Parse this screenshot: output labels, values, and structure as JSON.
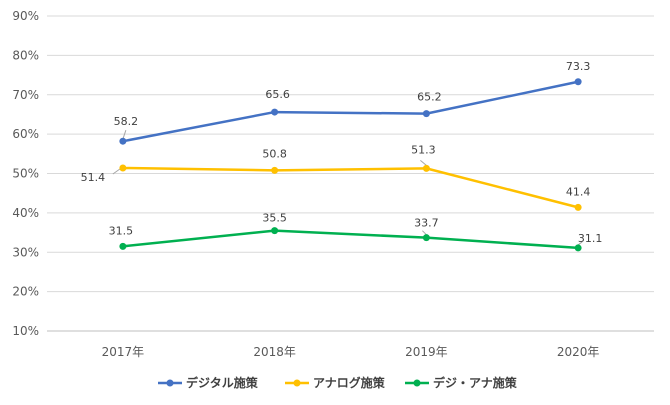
{
  "chart_data": {
    "type": "line",
    "title": "",
    "xlabel": "",
    "ylabel": "",
    "categories": [
      "2017年",
      "2018年",
      "2019年",
      "2020年"
    ],
    "y_ticks": [
      "10%",
      "20%",
      "30%",
      "40%",
      "50%",
      "60%",
      "70%",
      "80%",
      "90%"
    ],
    "ylim": [
      10,
      90
    ],
    "grid": true,
    "legend_position": "bottom",
    "series": [
      {
        "name": "デジタル施策",
        "color": "#4472C4",
        "values": [
          58.2,
          65.6,
          65.2,
          73.3
        ],
        "labels": [
          "58.2",
          "65.6",
          "65.2",
          "73.3"
        ]
      },
      {
        "name": "アナログ施策",
        "color": "#FFC000",
        "values": [
          51.4,
          50.8,
          51.3,
          41.4
        ],
        "labels": [
          "51.4",
          "50.8",
          "51.3",
          "41.4"
        ]
      },
      {
        "name": "デジ・アナ施策",
        "color": "#00B050",
        "values": [
          31.5,
          35.5,
          33.7,
          31.1
        ],
        "labels": [
          "31.5",
          "35.5",
          "33.7",
          "31.1"
        ]
      }
    ]
  }
}
